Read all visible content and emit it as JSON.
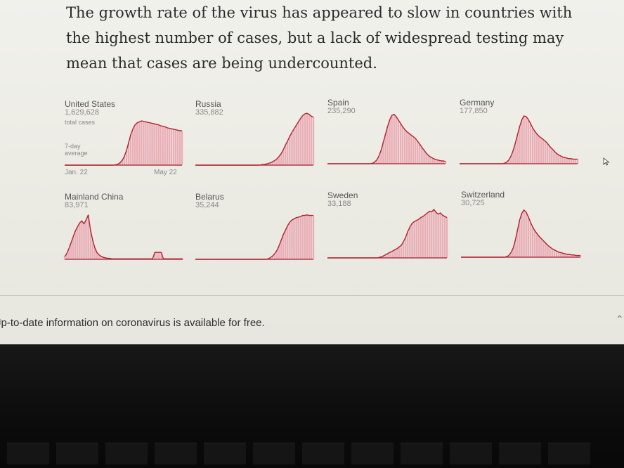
{
  "headline": "The growth rate of the virus has appeared to slow in countries with the highest number of cases, but a lack of widespread testing may mean that cases are being undercounted.",
  "footer": {
    "text": "Jp-to-date information on coronavirus is available for free."
  },
  "colors": {
    "fill": "#e9a3ae",
    "line": "#b0232f",
    "baseline": "#a0202c"
  },
  "chart_data": [
    {
      "type": "area",
      "country": "United States",
      "cases": "1,629,628",
      "cases_label": "total cases",
      "avg_label": "7-day average",
      "x_start": "Jan. 22",
      "x_end": "May 22",
      "values": [
        0,
        0,
        0,
        0,
        0,
        0,
        0,
        0,
        0,
        0,
        0,
        0,
        0,
        0,
        0,
        0,
        0,
        0,
        0,
        0,
        0,
        0,
        0,
        0,
        1,
        2,
        5,
        10,
        18,
        30,
        46,
        62,
        74,
        82,
        86,
        88,
        90,
        89,
        88,
        87,
        86,
        85,
        84,
        83,
        82,
        80,
        79,
        78,
        76,
        75,
        74,
        73,
        72,
        71,
        70,
        70
      ]
    },
    {
      "type": "area",
      "country": "Russia",
      "cases": "335,882",
      "values": [
        0,
        0,
        0,
        0,
        0,
        0,
        0,
        0,
        0,
        0,
        0,
        0,
        0,
        0,
        0,
        0,
        0,
        0,
        0,
        0,
        0,
        0,
        0,
        0,
        0,
        0,
        0,
        0,
        0,
        0,
        0,
        1,
        1,
        2,
        3,
        4,
        6,
        8,
        11,
        15,
        20,
        27,
        35,
        42,
        50,
        57,
        63,
        69,
        75,
        81,
        86,
        89,
        90,
        88,
        85,
        83
      ]
    },
    {
      "type": "area",
      "country": "Spain",
      "cases": "235,290",
      "values": [
        0,
        0,
        0,
        0,
        0,
        0,
        0,
        0,
        0,
        0,
        0,
        0,
        0,
        0,
        0,
        0,
        0,
        0,
        0,
        0,
        0,
        1,
        3,
        7,
        14,
        24,
        38,
        52,
        66,
        78,
        86,
        88,
        84,
        78,
        72,
        66,
        61,
        57,
        54,
        51,
        48,
        45,
        40,
        35,
        29,
        24,
        19,
        15,
        12,
        10,
        8,
        7,
        6,
        5,
        5,
        4
      ]
    },
    {
      "type": "area",
      "country": "Germany",
      "cases": "177,850",
      "values": [
        0,
        0,
        0,
        0,
        0,
        0,
        0,
        0,
        0,
        0,
        0,
        0,
        0,
        0,
        0,
        0,
        0,
        0,
        0,
        0,
        0,
        1,
        3,
        7,
        14,
        24,
        37,
        52,
        66,
        78,
        85,
        84,
        79,
        72,
        64,
        58,
        53,
        49,
        46,
        43,
        40,
        36,
        31,
        27,
        23,
        19,
        16,
        14,
        12,
        11,
        10,
        9,
        9,
        8,
        8,
        8
      ]
    },
    {
      "type": "area",
      "country": "Mainland China",
      "cases": "83,971",
      "values": [
        5,
        12,
        22,
        34,
        46,
        58,
        66,
        74,
        78,
        72,
        80,
        90,
        60,
        40,
        24,
        14,
        9,
        6,
        4,
        3,
        2,
        2,
        1,
        1,
        1,
        1,
        1,
        1,
        1,
        1,
        1,
        1,
        1,
        1,
        1,
        1,
        1,
        1,
        1,
        1,
        1,
        1,
        14,
        14,
        14,
        14,
        1,
        1,
        1,
        1,
        1,
        1,
        1,
        1,
        1,
        1
      ]
    },
    {
      "type": "area",
      "country": "Belarus",
      "cases": "35,244",
      "values": [
        0,
        0,
        0,
        0,
        0,
        0,
        0,
        0,
        0,
        0,
        0,
        0,
        0,
        0,
        0,
        0,
        0,
        0,
        0,
        0,
        0,
        0,
        0,
        0,
        0,
        0,
        0,
        0,
        0,
        0,
        0,
        0,
        0,
        0,
        1,
        3,
        6,
        10,
        16,
        24,
        34,
        44,
        52,
        60,
        66,
        70,
        72,
        74,
        75,
        76,
        78,
        78,
        79,
        78,
        78,
        78
      ]
    },
    {
      "type": "area",
      "country": "Sweden",
      "cases": "33,188",
      "values": [
        0,
        0,
        0,
        0,
        0,
        0,
        0,
        0,
        0,
        0,
        0,
        0,
        0,
        0,
        0,
        0,
        0,
        0,
        0,
        0,
        0,
        0,
        0,
        0,
        1,
        2,
        4,
        6,
        8,
        10,
        12,
        14,
        16,
        19,
        22,
        28,
        36,
        46,
        54,
        60,
        63,
        65,
        67,
        70,
        72,
        75,
        78,
        81,
        80,
        84,
        79,
        76,
        78,
        74,
        72,
        70
      ]
    },
    {
      "type": "area",
      "country": "Switzerland",
      "cases": "30,725",
      "values": [
        0,
        0,
        0,
        0,
        0,
        0,
        0,
        0,
        0,
        0,
        0,
        0,
        0,
        0,
        0,
        0,
        0,
        0,
        0,
        0,
        0,
        1,
        3,
        8,
        16,
        30,
        48,
        66,
        78,
        84,
        80,
        72,
        62,
        54,
        47,
        42,
        37,
        33,
        29,
        25,
        21,
        18,
        15,
        13,
        11,
        9,
        8,
        7,
        6,
        5,
        5,
        4,
        4,
        3,
        3,
        3
      ]
    }
  ]
}
